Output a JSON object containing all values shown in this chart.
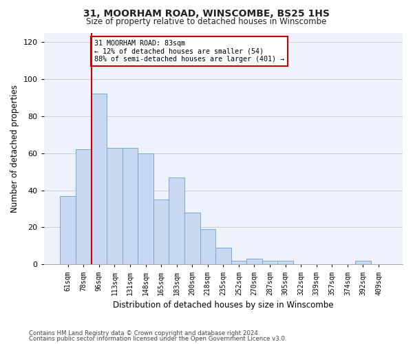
{
  "title1": "31, MOORHAM ROAD, WINSCOMBE, BS25 1HS",
  "title2": "Size of property relative to detached houses in Winscombe",
  "xlabel": "Distribution of detached houses by size in Winscombe",
  "ylabel": "Number of detached properties",
  "categories": [
    "61sqm",
    "78sqm",
    "96sqm",
    "113sqm",
    "131sqm",
    "148sqm",
    "165sqm",
    "183sqm",
    "200sqm",
    "218sqm",
    "235sqm",
    "252sqm",
    "270sqm",
    "287sqm",
    "305sqm",
    "322sqm",
    "339sqm",
    "357sqm",
    "374sqm",
    "392sqm",
    "409sqm"
  ],
  "values": [
    37,
    62,
    92,
    63,
    63,
    60,
    35,
    47,
    28,
    19,
    9,
    2,
    3,
    2,
    2,
    0,
    0,
    0,
    0,
    2,
    0
  ],
  "bar_color": "#c8d8f0",
  "bar_edge_color": "#7aaad0",
  "vline_color": "#cc0000",
  "annotation_text": "31 MOORHAM ROAD: 83sqm\n← 12% of detached houses are smaller (54)\n88% of semi-detached houses are larger (401) →",
  "annotation_box_color": "#ffffff",
  "annotation_box_edge": "#cc0000",
  "ylim": [
    0,
    125
  ],
  "yticks": [
    0,
    20,
    40,
    60,
    80,
    100,
    120
  ],
  "grid_color": "#cccccc",
  "background_color": "#eef2fc",
  "footer1": "Contains HM Land Registry data © Crown copyright and database right 2024.",
  "footer2": "Contains public sector information licensed under the Open Government Licence v3.0."
}
